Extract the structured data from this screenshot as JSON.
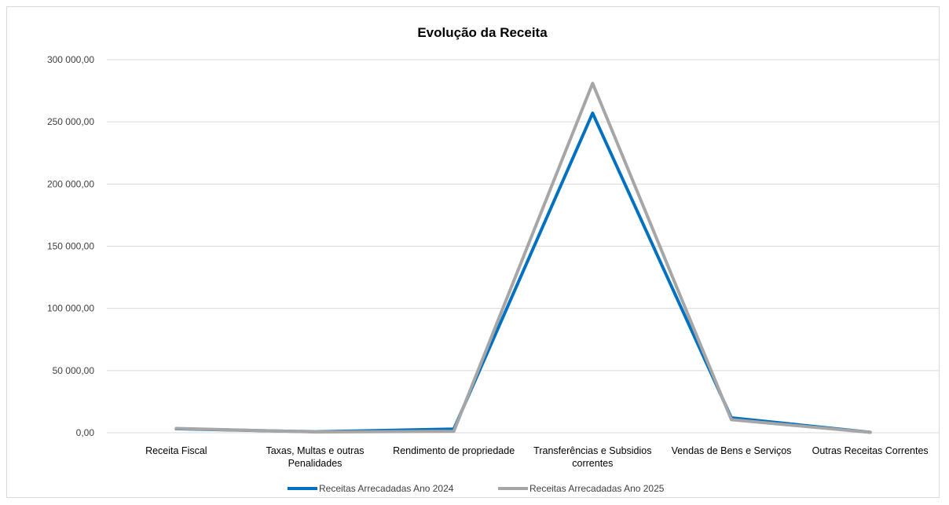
{
  "chart_data": {
    "type": "line",
    "title": "Evolução da Receita",
    "categories": [
      [
        "Receita Fiscal"
      ],
      [
        "Taxas, Multas e outras",
        "Penalidades"
      ],
      [
        "Rendimento de propriedade"
      ],
      [
        "Transferências e Subsidios",
        "correntes"
      ],
      [
        "Vendas de Bens e Serviços"
      ],
      [
        "Outras Receitas Correntes"
      ]
    ],
    "ylim": [
      0,
      300000
    ],
    "yticks": [
      0,
      50000,
      100000,
      150000,
      200000,
      250000,
      300000
    ],
    "ytick_labels": [
      "0,00",
      "50 000,00",
      "100 000,00",
      "150 000,00",
      "200 000,00",
      "250 000,00",
      "300 000,00"
    ],
    "grid": true,
    "legend_position": "bottom",
    "series": [
      {
        "name": "Receitas Arrecadadas Ano 2024",
        "color": "#0070c0",
        "values": [
          3200,
          800,
          3000,
          257000,
          12000,
          400
        ]
      },
      {
        "name": "Receitas Arrecadadas Ano 2025",
        "color": "#a6a6a6",
        "values": [
          3500,
          600,
          1200,
          281000,
          10500,
          300
        ]
      }
    ]
  }
}
